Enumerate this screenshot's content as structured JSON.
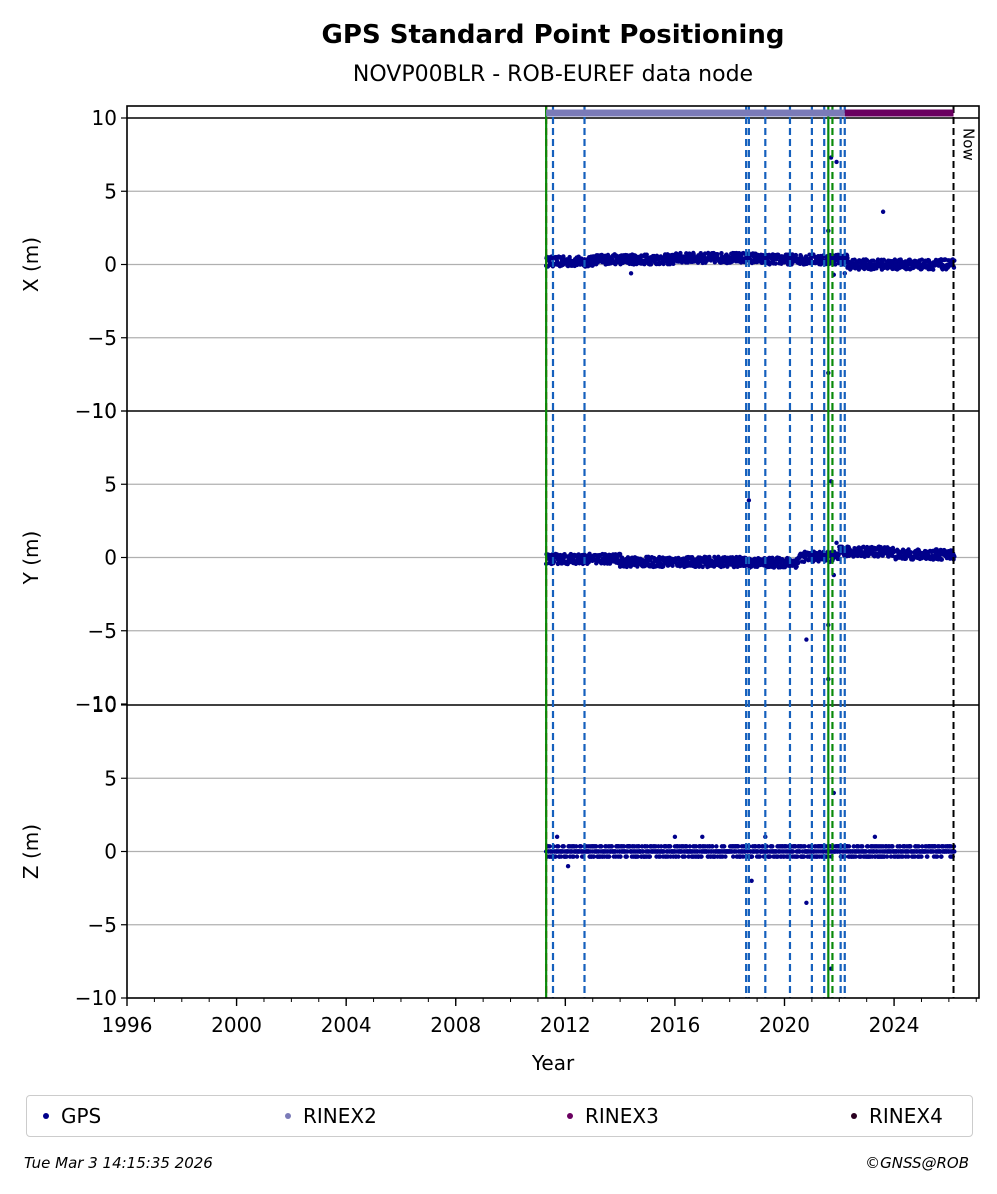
{
  "chart_data": {
    "type": "scatter",
    "title": "GPS Standard Point Positioning",
    "subtitle": "NOVP00BLR - ROB-EUREF data node",
    "xlabel": "Year",
    "xlim": [
      1996,
      2027.1
    ],
    "x_ticks": [
      "1996",
      "2000",
      "2004",
      "2008",
      "2012",
      "2016",
      "2020",
      "2024"
    ],
    "grid": "horizontal",
    "now_label": "Now",
    "now_x": 2026.17,
    "panels": [
      {
        "ylabel": "X (m)",
        "ylim": [
          -10,
          10
        ],
        "y_ticks": [
          "10",
          "5",
          "0",
          "−5",
          "−10"
        ],
        "series": [
          {
            "name": "GPS",
            "segments": [
              [
                2011.3,
                2013.0,
                0.2
              ],
              [
                2013.0,
                2016.0,
                0.35
              ],
              [
                2016.0,
                2019.0,
                0.45
              ],
              [
                2019.0,
                2022.3,
                0.35
              ],
              [
                2022.3,
                2026.2,
                0.0
              ]
            ],
            "outliers": [
              [
                2014.4,
                -0.6
              ],
              [
                2021.7,
                7.3
              ],
              [
                2021.9,
                7.0
              ],
              [
                2021.6,
                2.3
              ],
              [
                2021.8,
                -0.7
              ],
              [
                2021.6,
                -7.4
              ],
              [
                2023.6,
                3.6
              ],
              [
                2022.2,
                -0.6
              ]
            ]
          }
        ]
      },
      {
        "ylabel": "Y (m)",
        "ylim": [
          -10,
          10
        ],
        "y_ticks": [
          "10",
          "5",
          "0",
          "−5",
          "−10"
        ],
        "series": [
          {
            "name": "GPS",
            "segments": [
              [
                2011.3,
                2014.0,
                -0.1
              ],
              [
                2014.0,
                2018.5,
                -0.3
              ],
              [
                2018.5,
                2020.5,
                -0.35
              ],
              [
                2020.5,
                2022.0,
                0.05
              ],
              [
                2022.0,
                2024.0,
                0.4
              ],
              [
                2024.0,
                2026.2,
                0.2
              ]
            ],
            "outliers": [
              [
                2018.7,
                3.9
              ],
              [
                2020.8,
                -5.6
              ],
              [
                2021.7,
                5.2
              ],
              [
                2021.6,
                -4.6
              ],
              [
                2021.6,
                -8.3
              ],
              [
                2021.8,
                -1.2
              ],
              [
                2021.9,
                1.0
              ]
            ]
          }
        ]
      },
      {
        "ylabel": "Z (m)",
        "ylim": [
          -10,
          10
        ],
        "y_ticks": [
          "10",
          "5",
          "0",
          "−5",
          "−10"
        ],
        "series": [
          {
            "name": "GPS",
            "segments": [
              [
                2011.3,
                2026.2,
                0.0
              ]
            ],
            "outliers": [
              [
                2011.7,
                1.0
              ],
              [
                2012.1,
                -1.0
              ],
              [
                2018.8,
                -2.0
              ],
              [
                2020.8,
                -3.5
              ],
              [
                2021.7,
                -8.0
              ],
              [
                2021.8,
                4.0
              ],
              [
                2016.0,
                1.0
              ],
              [
                2017.0,
                1.0
              ],
              [
                2019.3,
                1.0
              ],
              [
                2023.3,
                1.0
              ]
            ]
          }
        ]
      }
    ],
    "vertical_lines": [
      {
        "x": 2011.3,
        "color": "#cc0000",
        "style": "dashed"
      },
      {
        "x": 2011.3,
        "color": "#0a8a0a",
        "style": "solid"
      },
      {
        "x": 2011.55,
        "color": "#1560bd",
        "style": "dashed"
      },
      {
        "x": 2012.7,
        "color": "#1560bd",
        "style": "dashed"
      },
      {
        "x": 2018.6,
        "color": "#1560bd",
        "style": "dashed"
      },
      {
        "x": 2018.7,
        "color": "#1560bd",
        "style": "dashed"
      },
      {
        "x": 2019.3,
        "color": "#1560bd",
        "style": "dashed"
      },
      {
        "x": 2020.2,
        "color": "#1560bd",
        "style": "dashed"
      },
      {
        "x": 2021.0,
        "color": "#1560bd",
        "style": "dashed"
      },
      {
        "x": 2021.45,
        "color": "#1560bd",
        "style": "dashed"
      },
      {
        "x": 2021.6,
        "color": "#0a8a0a",
        "style": "solid"
      },
      {
        "x": 2021.75,
        "color": "#0a8a0a",
        "style": "dashed"
      },
      {
        "x": 2022.05,
        "color": "#1560bd",
        "style": "dashed"
      },
      {
        "x": 2022.2,
        "color": "#1560bd",
        "style": "dashed"
      }
    ],
    "availability_bars": [
      {
        "name": "RINEX2",
        "from": 2011.3,
        "to": 2022.2,
        "color": "#7b7bb8"
      },
      {
        "name": "RINEX3",
        "from": 2022.2,
        "to": 2026.17,
        "color": "#6a0060"
      }
    ],
    "legend": [
      {
        "label": "GPS",
        "color": "#00008b"
      },
      {
        "label": "RINEX2",
        "color": "#7b7bb8"
      },
      {
        "label": "RINEX3",
        "color": "#6a0060"
      },
      {
        "label": "RINEX4",
        "color": "#2a0020"
      }
    ]
  },
  "footer": {
    "timestamp": "Tue Mar  3 14:15:35 2026",
    "credit": "©GNSS@ROB"
  }
}
